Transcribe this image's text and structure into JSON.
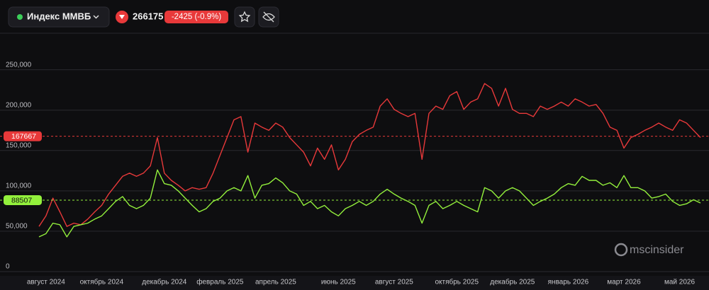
{
  "header": {
    "instrument": "Индекс ММВБ",
    "price": 266175,
    "change": "-2425 (-0.9%)"
  },
  "watermark": "mscinsider",
  "chart_data": {
    "type": "line",
    "categories": [
      null,
      "август 2024",
      null,
      null,
      null,
      null,
      null,
      null,
      null,
      "октябрь 2024",
      null,
      null,
      null,
      null,
      null,
      null,
      null,
      null,
      "декабрь 2024",
      null,
      null,
      null,
      null,
      null,
      null,
      null,
      "февраль 2025",
      null,
      null,
      null,
      null,
      null,
      null,
      null,
      "апрель 2025",
      null,
      null,
      null,
      null,
      null,
      null,
      null,
      null,
      "июнь 2025",
      null,
      null,
      null,
      null,
      null,
      null,
      null,
      "август 2025",
      null,
      null,
      null,
      null,
      null,
      null,
      null,
      null,
      "октябрь 2025",
      null,
      null,
      null,
      null,
      null,
      null,
      null,
      "декабрь 2025",
      null,
      null,
      null,
      null,
      null,
      null,
      null,
      "январь 2026",
      null,
      null,
      null,
      null,
      null,
      null,
      null,
      "март 2026",
      null,
      null,
      null,
      null,
      null,
      null,
      null,
      "май 2026",
      null,
      null,
      null
    ],
    "series": [
      {
        "color": "#e8393a",
        "values": [
          56000,
          69000,
          91000,
          74000,
          56000,
          60000,
          58000,
          65000,
          74000,
          82000,
          96000,
          107000,
          118000,
          122000,
          118000,
          122000,
          131000,
          166000,
          122000,
          113000,
          107000,
          100000,
          104000,
          102000,
          104000,
          122000,
          144000,
          166000,
          188000,
          192000,
          148000,
          184000,
          179000,
          175000,
          184000,
          179000,
          166000,
          157000,
          148000,
          131000,
          153000,
          139000,
          157000,
          126000,
          139000,
          161000,
          170000,
          175000,
          179000,
          205000,
          214000,
          201000,
          196000,
          192000,
          196000,
          139000,
          196000,
          205000,
          201000,
          218000,
          223000,
          201000,
          210000,
          214000,
          233000,
          227000,
          205000,
          227000,
          201000,
          196000,
          196000,
          192000,
          205000,
          201000,
          205000,
          210000,
          205000,
          214000,
          210000,
          205000,
          207000,
          196000,
          179000,
          175000,
          153000,
          166000,
          170000,
          175000,
          179000,
          184000,
          179000,
          175000,
          188000,
          184000,
          175000,
          166000
        ]
      },
      {
        "color": "#93f03c",
        "values": [
          43000,
          47000,
          60000,
          58000,
          43000,
          56000,
          58000,
          60000,
          65000,
          69000,
          78000,
          87000,
          93000,
          82000,
          78000,
          82000,
          91000,
          126000,
          109000,
          107000,
          100000,
          91000,
          82000,
          74000,
          78000,
          87000,
          91000,
          100000,
          104000,
          100000,
          119000,
          91000,
          107000,
          109000,
          116000,
          110000,
          100000,
          96000,
          82000,
          87000,
          78000,
          82000,
          74000,
          69000,
          78000,
          82000,
          87000,
          82000,
          87000,
          96000,
          102000,
          96000,
          91000,
          87000,
          82000,
          60000,
          82000,
          87000,
          78000,
          82000,
          87000,
          82000,
          78000,
          74000,
          104000,
          100000,
          91000,
          100000,
          104000,
          100000,
          91000,
          82000,
          87000,
          91000,
          96000,
          104000,
          109000,
          107000,
          118000,
          113000,
          113000,
          107000,
          110000,
          104000,
          119000,
          104000,
          104000,
          100000,
          91000,
          93000,
          96000,
          87000,
          82000,
          84000,
          89000,
          85000
        ]
      }
    ],
    "reference_lines": [
      {
        "value": 167667,
        "color": "#e8393a"
      },
      {
        "value": 88507,
        "color": "#93f03c"
      }
    ],
    "ylim": [
      0,
      290000
    ],
    "yticks": [
      0,
      {
        "value": 50000,
        "label": "50,000"
      },
      {
        "value": 100000,
        "label": "100,000"
      },
      {
        "value": 150000,
        "label": "150,000"
      },
      {
        "value": 200000,
        "label": "200,000"
      },
      {
        "value": 250000,
        "label": "250,000"
      }
    ],
    "grid": true
  }
}
